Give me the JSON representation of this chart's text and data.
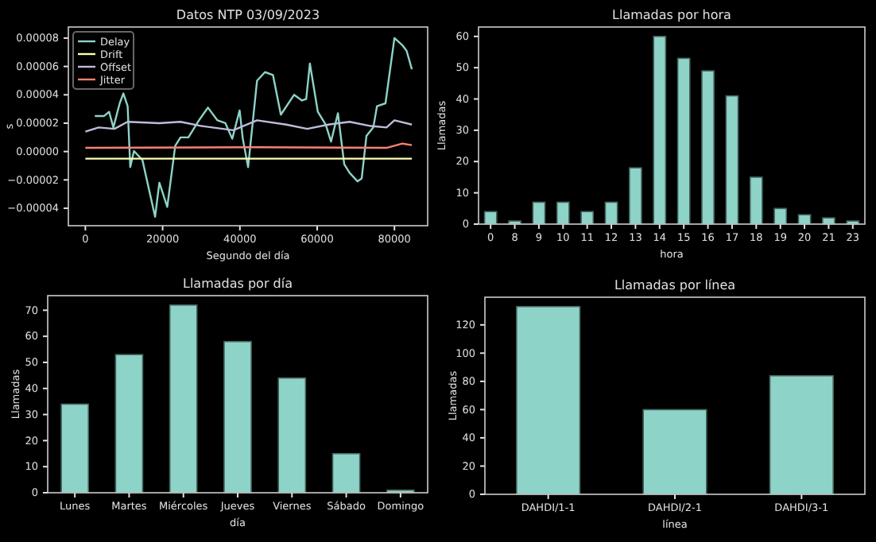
{
  "chart_data": [
    {
      "type": "line",
      "title": "Datos NTP 03/09/2023",
      "xlabel": "Segundo del día",
      "ylabel": "s",
      "xlim": [
        -4400,
        88600
      ],
      "xticks": [
        0,
        20000,
        40000,
        60000,
        80000
      ],
      "ylim": [
        -5.23e-05,
        8.78e-05
      ],
      "yticks": [
        {
          "value": -4e-05,
          "label": "−0.00004"
        },
        {
          "value": -2e-05,
          "label": "−0.00002"
        },
        {
          "value": 0,
          "label": "0.00000"
        },
        {
          "value": 2e-05,
          "label": "0.00002"
        },
        {
          "value": 4e-05,
          "label": "0.00004"
        },
        {
          "value": 6e-05,
          "label": "0.00006"
        },
        {
          "value": 8e-05,
          "label": "0.00008"
        }
      ],
      "legend": "top left",
      "series": [
        {
          "name": "Delay",
          "color": "#8dd3c7",
          "x": [
            2460,
            4790,
            6150,
            7250,
            8890,
            9850,
            10940,
            11620,
            12580,
            14770,
            18050,
            19150,
            21200,
            23250,
            24620,
            26670,
            29400,
            31730,
            34190,
            36240,
            38020,
            38970,
            39930,
            40750,
            42120,
            44440,
            46500,
            48550,
            50600,
            54020,
            56070,
            57160,
            58120,
            60170,
            62220,
            63590,
            65370,
            67010,
            68380,
            70430,
            71520,
            72750,
            74530,
            75490,
            77680,
            80000,
            82050,
            83150,
            84510
          ],
          "values": [
            2.5e-05,
            2.5e-05,
            2.8e-05,
            1.7e-05,
            3.4e-05,
            4.1e-05,
            3.2e-05,
            -1.1e-05,
            4e-07,
            -6e-06,
            -4.6e-05,
            -2.2e-05,
            -3.9e-05,
            4e-06,
            1e-05,
            1e-05,
            2.2e-05,
            3.1e-05,
            2.2e-05,
            2e-05,
            9e-06,
            1.9e-05,
            2.9e-05,
            9e-06,
            -1.1e-05,
            5e-05,
            5.6e-05,
            5.4e-05,
            2.6e-05,
            4e-05,
            3.6e-05,
            3.7e-05,
            6.2e-05,
            2.8e-05,
            1.9e-05,
            7e-06,
            2.7e-05,
            -9e-06,
            -1.5e-05,
            -2.1e-05,
            -1.9e-05,
            1.1e-05,
            1.7e-05,
            3.2e-05,
            3.4e-05,
            8e-05,
            7.5e-05,
            7.1e-05,
            5.8e-05
          ]
        },
        {
          "name": "Drift",
          "color": "#feffb3",
          "x": [
            0,
            84510
          ],
          "values": [
            -5e-06,
            -5e-06
          ]
        },
        {
          "name": "Offset",
          "color": "#bfbbd9",
          "x": [
            0,
            3420,
            7520,
            10940,
            19150,
            24620,
            30080,
            38290,
            44440,
            51970,
            57440,
            62910,
            68380,
            73850,
            77950,
            80000,
            84510
          ],
          "values": [
            1.4e-05,
            1.7e-05,
            1.6e-05,
            2.1e-05,
            2e-05,
            2.1e-05,
            1.8e-05,
            1.5e-05,
            2.2e-05,
            1.9e-05,
            1.6e-05,
            1.9e-05,
            2.1e-05,
            1.8e-05,
            1.7e-05,
            2.2e-05,
            1.9e-05
          ]
        },
        {
          "name": "Jitter",
          "color": "#fa8174",
          "x": [
            0,
            43760,
            77950,
            82050,
            84510
          ],
          "values": [
            2.6e-06,
            3e-06,
            2.6e-06,
            5.6e-06,
            4.5e-06
          ]
        }
      ]
    },
    {
      "type": "bar",
      "title": "Llamadas por hora",
      "xlabel": "hora",
      "ylabel": "Llamadas",
      "categories": [
        "0",
        "8",
        "9",
        "10",
        "11",
        "12",
        "13",
        "14",
        "15",
        "16",
        "17",
        "18",
        "19",
        "20",
        "21",
        "23"
      ],
      "values": [
        4,
        1,
        7,
        7,
        4,
        7,
        18,
        60,
        53,
        49,
        41,
        15,
        5,
        3,
        2,
        1
      ],
      "color": "#8dd3c7",
      "ylim": [
        0,
        63
      ],
      "yticks": [
        0,
        10,
        20,
        30,
        40,
        50,
        60
      ]
    },
    {
      "type": "bar",
      "title": "Llamadas por día",
      "xlabel": "día",
      "ylabel": "Llamadas",
      "categories": [
        "Lunes",
        "Martes",
        "Miércoles",
        "Jueves",
        "Viernes",
        "Sábado",
        "Domingo"
      ],
      "values": [
        34,
        53,
        72,
        58,
        44,
        15,
        1
      ],
      "color": "#8dd3c7",
      "ylim": [
        0,
        75.6
      ],
      "yticks": [
        0,
        10,
        20,
        30,
        40,
        50,
        60,
        70
      ]
    },
    {
      "type": "bar",
      "title": "Llamadas por línea",
      "xlabel": "línea",
      "ylabel": "Llamadas",
      "categories": [
        "DAHDI/1-1",
        "DAHDI/2-1",
        "DAHDI/3-1"
      ],
      "values": [
        133,
        60,
        84
      ],
      "color": "#8dd3c7",
      "ylim": [
        0,
        139.6
      ],
      "yticks": [
        0,
        20,
        40,
        60,
        80,
        100,
        120
      ]
    }
  ]
}
